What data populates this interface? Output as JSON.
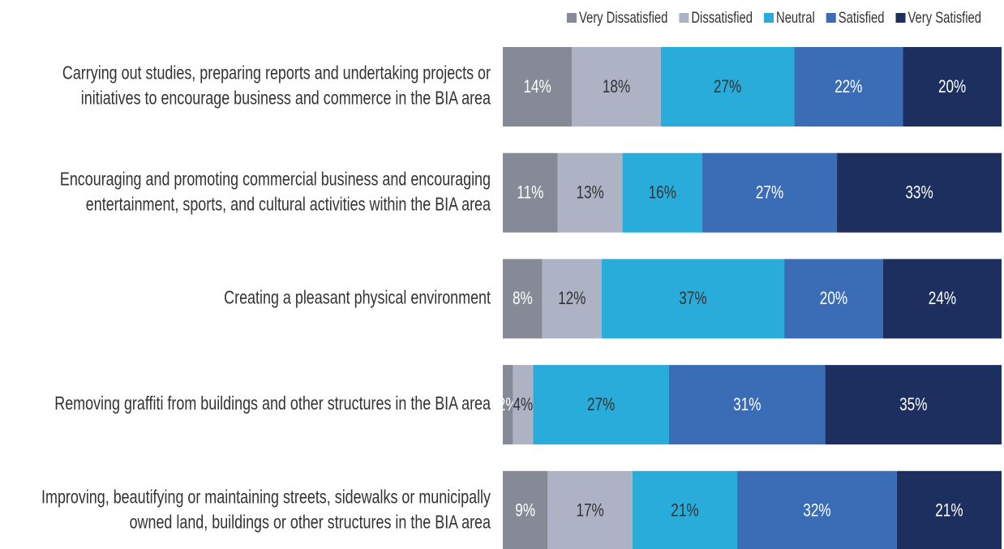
{
  "chart_data": {
    "type": "stacked_bar_horizontal_100",
    "categories": [
      [
        "Carrying out studies, preparing reports and undertaking projects or",
        "initiatives to encourage business and commerce in the BIA area"
      ],
      [
        "Encouraging and promoting commercial business and encouraging",
        "entertainment, sports, and cultural activities within the BIA area"
      ],
      [
        "Creating a pleasant physical environment"
      ],
      [
        "Removing graffiti from buildings and other structures in the BIA area"
      ],
      [
        "Improving, beautifying or maintaining streets, sidewalks or municipally",
        "owned land, buildings or other structures in the BIA area"
      ]
    ],
    "series": [
      {
        "name": "Very Dissatisfied",
        "color": "#868a96",
        "label_color": "#ffffff",
        "values": [
          14,
          11,
          8,
          2,
          9
        ],
        "value_labels": [
          "14%",
          "11%",
          "8%",
          "2%",
          "9%"
        ]
      },
      {
        "name": "Dissatisfied",
        "color": "#adb3c4",
        "label_color": "#333333",
        "values": [
          18,
          13,
          12,
          4,
          17
        ],
        "value_labels": [
          "18%",
          "13%",
          "12%",
          "4%",
          "17%"
        ]
      },
      {
        "name": "Neutral",
        "color": "#29acd9",
        "label_color": "#333333",
        "values": [
          27,
          16,
          37,
          27,
          21
        ],
        "value_labels": [
          "27%",
          "16%",
          "37%",
          "27%",
          "21%"
        ]
      },
      {
        "name": "Satisfied",
        "color": "#3a6db5",
        "label_color": "#ffffff",
        "values": [
          22,
          27,
          20,
          31,
          32
        ],
        "value_labels": [
          "22%",
          "27%",
          "20%",
          "31%",
          "32%"
        ]
      },
      {
        "name": "Very Satisfied",
        "color": "#1d2f5e",
        "label_color": "#ffffff",
        "values": [
          20,
          33,
          24,
          35,
          21
        ],
        "value_labels": [
          "20%",
          "33%",
          "24%",
          "35%",
          "21%"
        ]
      }
    ],
    "legend": "top-right"
  }
}
